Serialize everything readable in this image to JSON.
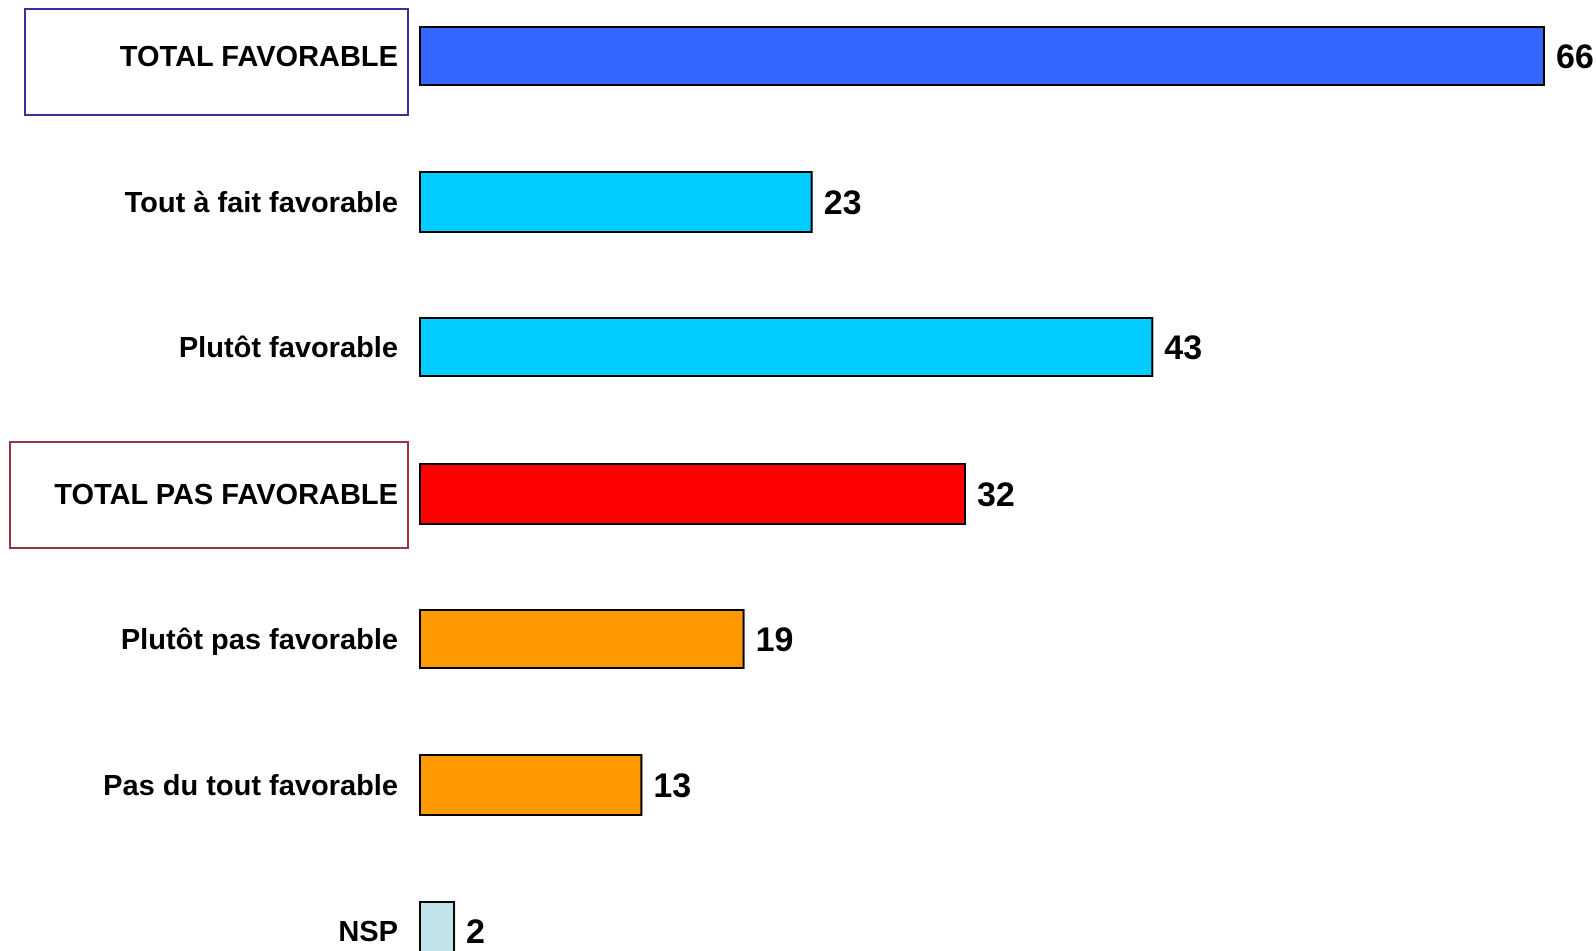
{
  "chart_data": {
    "type": "bar",
    "orientation": "horizontal",
    "title": "",
    "xlabel": "",
    "ylabel": "",
    "xlim": [
      0,
      66
    ],
    "grid": false,
    "legend": "none",
    "categories": [
      "TOTAL FAVORABLE",
      "Tout à fait favorable",
      "Plutôt favorable",
      "TOTAL PAS FAVORABLE",
      "Plutôt pas favorable",
      "Pas du tout favorable",
      "NSP"
    ],
    "values": [
      66,
      23,
      43,
      32,
      19,
      13,
      2
    ],
    "bar_colors": [
      "#3366FF",
      "#00CCFF",
      "#00CCFF",
      "#FF0000",
      "#FF9900",
      "#FF9900",
      "#BFE3E8"
    ],
    "boxed_categories": [
      {
        "index": 0,
        "color": "#333399"
      },
      {
        "index": 3,
        "color": "#993344"
      }
    ]
  }
}
